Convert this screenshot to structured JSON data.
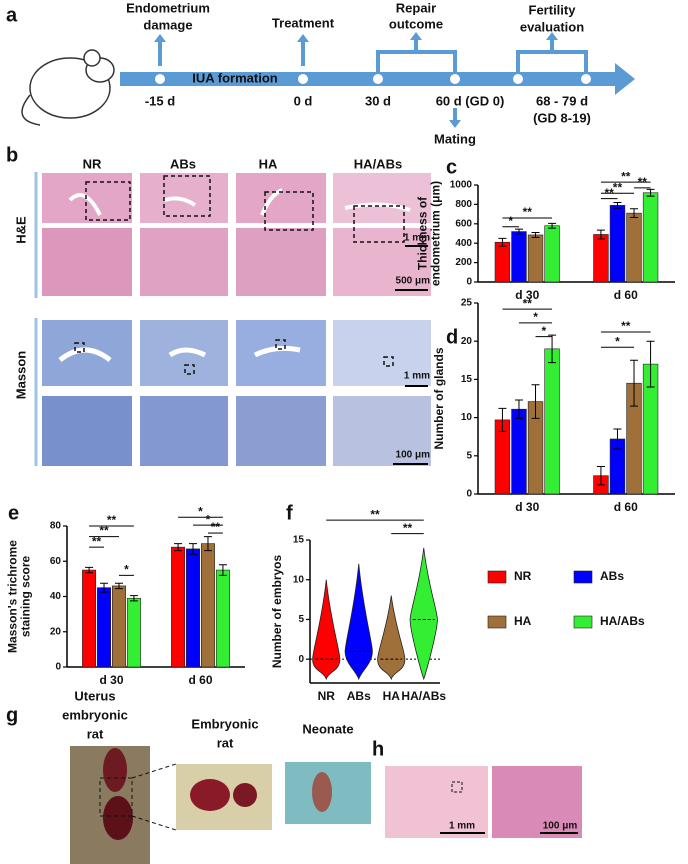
{
  "panel_a": {
    "panel_label": "a",
    "damage": [
      "Endometrium",
      "damage"
    ],
    "damage_time": "-15 d",
    "phase": "IUA  formation",
    "treatment": "Treatment",
    "treatment_time": "0 d",
    "repair": [
      "Repair",
      "outcome"
    ],
    "repair_start": "30 d",
    "repair_end": "60 d (GD 0)",
    "mating": "Mating",
    "fertility": [
      "Fertility",
      "evaluation"
    ],
    "fertility_time": [
      "68 - 79 d",
      "(GD 8-19)"
    ]
  },
  "panel_b": {
    "panel_label": "b",
    "columns": [
      "NR",
      "ABs",
      "HA",
      "HA/ABs"
    ],
    "rows": [
      "H&E",
      "Masson"
    ],
    "scale_bars": [
      "1 mm",
      "500 μm",
      "1 mm",
      "100 μm"
    ]
  },
  "panel_g": {
    "panel_label": "g",
    "uterus": [
      "Uterus",
      "embryonic",
      "rat"
    ],
    "embryo": [
      "Embryonic",
      "rat"
    ],
    "neonate": "Neonate"
  },
  "panel_h": {
    "panel_label": "h",
    "scale_bars": [
      "1 mm",
      "100 μm"
    ]
  },
  "chart_data": [
    {
      "type": "bar",
      "panel_label": "c",
      "ylabel": [
        "Thickness of",
        "endometrium (μm)"
      ],
      "categories": [
        "d 30",
        "d 60"
      ],
      "series": [
        {
          "name": "NR",
          "color": "#ff0000",
          "values": [
            410,
            490
          ],
          "errors": [
            40,
            45
          ]
        },
        {
          "name": "ABs",
          "color": "#0000ff",
          "values": [
            520,
            790
          ],
          "errors": [
            25,
            30
          ]
        },
        {
          "name": "HA",
          "color": "#a0703a",
          "values": [
            485,
            710
          ],
          "errors": [
            25,
            45
          ]
        },
        {
          "name": "HA/ABs",
          "color": "#33ee33",
          "values": [
            580,
            920
          ],
          "errors": [
            25,
            35
          ]
        }
      ],
      "ylim": [
        0,
        1000
      ],
      "yticks": [
        0,
        200,
        400,
        600,
        800,
        1000
      ],
      "annotations": [
        "*",
        "**",
        "**",
        "**",
        "**",
        "**"
      ]
    },
    {
      "type": "bar",
      "panel_label": "d",
      "ylabel": [
        "Number of glands"
      ],
      "categories": [
        "d 30",
        "d 60"
      ],
      "series": [
        {
          "name": "NR",
          "color": "#ff0000",
          "values": [
            9.7,
            2.4
          ],
          "errors": [
            1.5,
            1.2
          ]
        },
        {
          "name": "ABs",
          "color": "#0000ff",
          "values": [
            11.1,
            7.2
          ],
          "errors": [
            1.2,
            1.3
          ]
        },
        {
          "name": "HA",
          "color": "#a0703a",
          "values": [
            12.1,
            14.5
          ],
          "errors": [
            2.2,
            3.0
          ]
        },
        {
          "name": "HA/ABs",
          "color": "#33ee33",
          "values": [
            19.0,
            17.0
          ],
          "errors": [
            1.8,
            3.0
          ]
        }
      ],
      "ylim": [
        0,
        25
      ],
      "yticks": [
        0,
        5,
        10,
        15,
        20,
        25
      ],
      "annotations": [
        "**",
        "*",
        "*",
        "**",
        "*"
      ]
    },
    {
      "type": "bar",
      "panel_label": "e",
      "ylabel": [
        "Masson's trichrome",
        "staining score"
      ],
      "categories": [
        "d 30",
        "d 60"
      ],
      "series": [
        {
          "name": "NR",
          "color": "#ff0000",
          "values": [
            55,
            68
          ],
          "errors": [
            1.5,
            2
          ]
        },
        {
          "name": "ABs",
          "color": "#0000ff",
          "values": [
            45,
            67
          ],
          "errors": [
            2.5,
            3
          ]
        },
        {
          "name": "HA",
          "color": "#a0703a",
          "values": [
            46,
            70
          ],
          "errors": [
            1.5,
            4
          ]
        },
        {
          "name": "HA/ABs",
          "color": "#33ee33",
          "values": [
            39,
            55
          ],
          "errors": [
            1.5,
            3
          ]
        }
      ],
      "ylim": [
        0,
        80
      ],
      "yticks": [
        0,
        20,
        40,
        60,
        80
      ],
      "annotations": [
        "**",
        "**",
        "**",
        "*",
        "*",
        "*",
        "**"
      ]
    },
    {
      "type": "violin",
      "panel_label": "f",
      "ylabel": [
        "Number of embryos"
      ],
      "categories": [
        "NR",
        "ABs",
        "HA",
        "HA/ABs"
      ],
      "colors": [
        "#ff0000",
        "#0000ff",
        "#a0703a",
        "#33ee33"
      ],
      "max": [
        10,
        12,
        8,
        14
      ],
      "median": [
        0,
        1,
        0,
        5
      ],
      "ylim": [
        -3,
        15
      ],
      "yticks": [
        0,
        5,
        10,
        15
      ],
      "annotations": [
        "**",
        "**"
      ]
    }
  ]
}
